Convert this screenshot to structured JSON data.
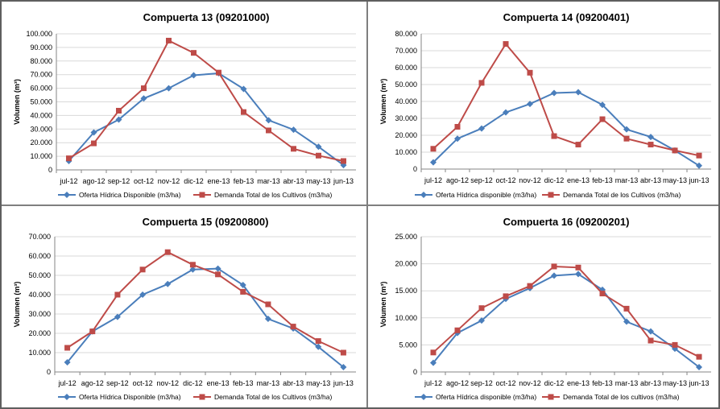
{
  "colors": {
    "oferta": "#4a7ebb",
    "demanda": "#be4b48",
    "grid": "#d9d9d9",
    "axis": "#868686"
  },
  "chart_data": [
    {
      "type": "line",
      "title": "Compuerta 13 (09201000)",
      "ylabel": "Volumen (m³)",
      "ylim": [
        0,
        100000
      ],
      "yticks": [
        "0",
        "10.000",
        "20.000",
        "30.000",
        "40.000",
        "50.000",
        "60.000",
        "70.000",
        "80.000",
        "90.000",
        "100.000"
      ],
      "categories": [
        "jul-12",
        "ago-12",
        "sep-12",
        "oct-12",
        "nov-12",
        "dic-12",
        "ene-13",
        "feb-13",
        "mar-13",
        "abr-13",
        "may-13",
        "jun-13"
      ],
      "series": [
        {
          "name": "Oferta Hídrica Disponible (m3/ha)",
          "values": [
            6500,
            27500,
            37000,
            52500,
            60000,
            69500,
            71000,
            59500,
            36500,
            29500,
            17000,
            3500
          ]
        },
        {
          "name": "Demanda Total de los Cultivos (m3/ha)",
          "values": [
            8500,
            19500,
            43500,
            60000,
            95000,
            86000,
            71500,
            42500,
            29000,
            15500,
            10500,
            6500
          ]
        }
      ]
    },
    {
      "type": "line",
      "title": "Compuerta 14 (09200401)",
      "ylabel": "Volumen (m³)",
      "ylim": [
        0,
        80000
      ],
      "yticks": [
        "0",
        "10.000",
        "20.000",
        "30.000",
        "40.000",
        "50.000",
        "60.000",
        "70.000",
        "80.000"
      ],
      "categories": [
        "jul-12",
        "ago-12",
        "sep-12",
        "oct-12",
        "nov-12",
        "dic-12",
        "ene-13",
        "feb-13",
        "mar-13",
        "abr-13",
        "may-13",
        "jun-13"
      ],
      "series": [
        {
          "name": "Oferta Hídrica disponible (m3/ha)",
          "values": [
            4000,
            18000,
            24000,
            33500,
            38500,
            45000,
            45500,
            38000,
            23500,
            19000,
            11000,
            2000
          ]
        },
        {
          "name": "Demanda Total de los Cultivos (m3/ha)",
          "values": [
            12000,
            25000,
            51000,
            74000,
            57000,
            19500,
            14500,
            29500,
            18000,
            14500,
            11000,
            8000
          ]
        }
      ]
    },
    {
      "type": "line",
      "title": "Compuerta 15 (09200800)",
      "ylabel": "Volumen (m³)",
      "ylim": [
        0,
        70000
      ],
      "yticks": [
        "0",
        "10.000",
        "20.000",
        "30.000",
        "40.000",
        "50.000",
        "60.000",
        "70.000"
      ],
      "categories": [
        "jul-12",
        "ago-12",
        "sep-12",
        "oct-12",
        "nov-12",
        "dic-12",
        "ene-13",
        "feb-13",
        "mar-13",
        "abr-13",
        "may-13",
        "jun-13"
      ],
      "series": [
        {
          "name": "Oferta Hídrica Disponible (m3/ha)",
          "values": [
            5000,
            21000,
            28500,
            40000,
            45500,
            53000,
            53500,
            45000,
            27500,
            22500,
            13000,
            2500
          ]
        },
        {
          "name": "Demanda Total de los Cultivos (m3/ha)",
          "values": [
            12500,
            21000,
            40000,
            53000,
            62000,
            55500,
            50500,
            41500,
            35000,
            23500,
            16000,
            10000
          ]
        }
      ]
    },
    {
      "type": "line",
      "title": "Compuerta 16 (09200201)",
      "ylabel": "Volumen (m³)",
      "ylim": [
        0,
        25000
      ],
      "yticks": [
        "0",
        "5.000",
        "10.000",
        "15.000",
        "20.000",
        "25.000"
      ],
      "categories": [
        "jul-12",
        "ago-12",
        "sep-12",
        "oct-12",
        "nov-12",
        "dic-12",
        "ene-13",
        "feb-13",
        "mar-13",
        "abr-13",
        "may-13",
        "jun-13"
      ],
      "series": [
        {
          "name": "Oferta Hídrica disponible (m3/ha)",
          "values": [
            1700,
            7200,
            9500,
            13500,
            15500,
            17800,
            18100,
            15200,
            9300,
            7500,
            4300,
            900
          ]
        },
        {
          "name": "Demanda Total de los cultivos (m3/ha)",
          "values": [
            3600,
            7700,
            11800,
            14000,
            15900,
            19500,
            19300,
            14500,
            11700,
            5800,
            5000,
            2800
          ]
        }
      ]
    }
  ]
}
